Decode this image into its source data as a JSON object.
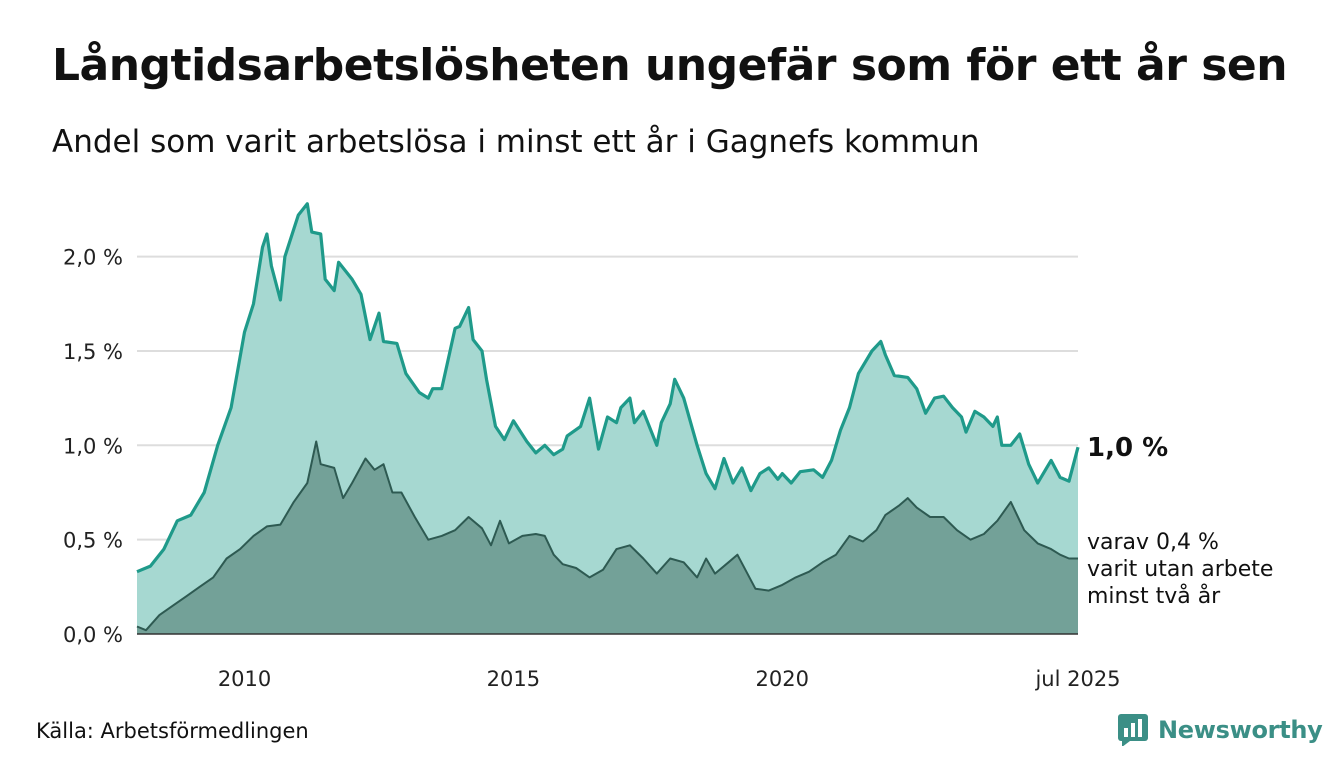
{
  "title": "Långtidsarbetslösheten ungefär som för ett år sen",
  "subtitle": "Andel som varit arbetslösa i minst ett år i Gagnefs kommun",
  "source": "Källa: Arbetsförmedlingen",
  "brand": "Newsworthy",
  "colors": {
    "total_line": "#1f9a8a",
    "total_fill": "#a6d8d1",
    "sub_line": "#2e5a52",
    "sub_fill": "#73a198",
    "grid": "#dddddd",
    "brand": "#3b8f86"
  },
  "chart_data": {
    "type": "area",
    "x_range": [
      "2008-01",
      "2025-07"
    ],
    "ylim": [
      0,
      2.3
    ],
    "y_ticks": [
      0,
      0.5,
      1.0,
      1.5,
      2.0
    ],
    "y_tick_labels": [
      "0,0 %",
      "0,5 %",
      "1,0 %",
      "1,5 %",
      "2,0 %"
    ],
    "x_ticks": [
      "2010-01",
      "2015-01",
      "2020-01",
      "2025-07"
    ],
    "x_tick_labels": [
      "2010",
      "2015",
      "2020",
      "jul 2025"
    ],
    "end_label_total": "1,0 %",
    "end_label_sub": [
      "varav 0,4 %",
      "varit utan arbete",
      "minst två år"
    ],
    "series": [
      {
        "key": "total",
        "points": [
          [
            "2008-01",
            0.33
          ],
          [
            "2008-04",
            0.36
          ],
          [
            "2008-07",
            0.45
          ],
          [
            "2008-10",
            0.6
          ],
          [
            "2009-01",
            0.63
          ],
          [
            "2009-04",
            0.75
          ],
          [
            "2009-07",
            1.0
          ],
          [
            "2009-10",
            1.2
          ],
          [
            "2010-01",
            1.6
          ],
          [
            "2010-03",
            1.75
          ],
          [
            "2010-05",
            2.05
          ],
          [
            "2010-06",
            2.12
          ],
          [
            "2010-07",
            1.95
          ],
          [
            "2010-09",
            1.77
          ],
          [
            "2010-10",
            2.0
          ],
          [
            "2011-01",
            2.22
          ],
          [
            "2011-03",
            2.28
          ],
          [
            "2011-04",
            2.13
          ],
          [
            "2011-06",
            2.12
          ],
          [
            "2011-07",
            1.88
          ],
          [
            "2011-09",
            1.82
          ],
          [
            "2011-10",
            1.97
          ],
          [
            "2012-01",
            1.88
          ],
          [
            "2012-03",
            1.8
          ],
          [
            "2012-05",
            1.56
          ],
          [
            "2012-07",
            1.7
          ],
          [
            "2012-08",
            1.55
          ],
          [
            "2012-11",
            1.54
          ],
          [
            "2013-01",
            1.38
          ],
          [
            "2013-04",
            1.28
          ],
          [
            "2013-06",
            1.25
          ],
          [
            "2013-07",
            1.3
          ],
          [
            "2013-09",
            1.3
          ],
          [
            "2013-12",
            1.62
          ],
          [
            "2014-01",
            1.63
          ],
          [
            "2014-03",
            1.73
          ],
          [
            "2014-04",
            1.56
          ],
          [
            "2014-06",
            1.5
          ],
          [
            "2014-07",
            1.35
          ],
          [
            "2014-09",
            1.1
          ],
          [
            "2014-11",
            1.03
          ],
          [
            "2015-01",
            1.13
          ],
          [
            "2015-04",
            1.02
          ],
          [
            "2015-06",
            0.96
          ],
          [
            "2015-08",
            1.0
          ],
          [
            "2015-10",
            0.95
          ],
          [
            "2015-12",
            0.98
          ],
          [
            "2016-01",
            1.05
          ],
          [
            "2016-04",
            1.1
          ],
          [
            "2016-06",
            1.25
          ],
          [
            "2016-08",
            0.98
          ],
          [
            "2016-10",
            1.15
          ],
          [
            "2016-12",
            1.12
          ],
          [
            "2017-01",
            1.2
          ],
          [
            "2017-03",
            1.25
          ],
          [
            "2017-04",
            1.12
          ],
          [
            "2017-06",
            1.18
          ],
          [
            "2017-09",
            1.0
          ],
          [
            "2017-10",
            1.12
          ],
          [
            "2017-12",
            1.22
          ],
          [
            "2018-01",
            1.35
          ],
          [
            "2018-03",
            1.25
          ],
          [
            "2018-06",
            1.0
          ],
          [
            "2018-08",
            0.85
          ],
          [
            "2018-10",
            0.77
          ],
          [
            "2018-12",
            0.93
          ],
          [
            "2019-02",
            0.8
          ],
          [
            "2019-04",
            0.88
          ],
          [
            "2019-06",
            0.76
          ],
          [
            "2019-08",
            0.85
          ],
          [
            "2019-10",
            0.88
          ],
          [
            "2019-12",
            0.82
          ],
          [
            "2020-01",
            0.85
          ],
          [
            "2020-03",
            0.8
          ],
          [
            "2020-05",
            0.86
          ],
          [
            "2020-08",
            0.87
          ],
          [
            "2020-10",
            0.83
          ],
          [
            "2020-12",
            0.92
          ],
          [
            "2021-02",
            1.08
          ],
          [
            "2021-04",
            1.2
          ],
          [
            "2021-06",
            1.38
          ],
          [
            "2021-09",
            1.5
          ],
          [
            "2021-11",
            1.55
          ],
          [
            "2021-12",
            1.48
          ],
          [
            "2022-02",
            1.37
          ],
          [
            "2022-05",
            1.36
          ],
          [
            "2022-07",
            1.3
          ],
          [
            "2022-09",
            1.17
          ],
          [
            "2022-11",
            1.25
          ],
          [
            "2023-01",
            1.26
          ],
          [
            "2023-03",
            1.2
          ],
          [
            "2023-05",
            1.15
          ],
          [
            "2023-06",
            1.07
          ],
          [
            "2023-08",
            1.18
          ],
          [
            "2023-10",
            1.15
          ],
          [
            "2023-12",
            1.1
          ],
          [
            "2024-01",
            1.15
          ],
          [
            "2024-02",
            1.0
          ],
          [
            "2024-04",
            1.0
          ],
          [
            "2024-06",
            1.06
          ],
          [
            "2024-08",
            0.9
          ],
          [
            "2024-10",
            0.8
          ],
          [
            "2024-12",
            0.88
          ],
          [
            "2025-01",
            0.92
          ],
          [
            "2025-03",
            0.83
          ],
          [
            "2025-05",
            0.81
          ],
          [
            "2025-07",
            0.99
          ]
        ]
      },
      {
        "key": "sub",
        "points": [
          [
            "2008-01",
            0.04
          ],
          [
            "2008-03",
            0.02
          ],
          [
            "2008-06",
            0.1
          ],
          [
            "2008-09",
            0.15
          ],
          [
            "2008-12",
            0.2
          ],
          [
            "2009-03",
            0.25
          ],
          [
            "2009-06",
            0.3
          ],
          [
            "2009-09",
            0.4
          ],
          [
            "2009-12",
            0.45
          ],
          [
            "2010-03",
            0.52
          ],
          [
            "2010-06",
            0.57
          ],
          [
            "2010-09",
            0.58
          ],
          [
            "2010-12",
            0.7
          ],
          [
            "2011-03",
            0.8
          ],
          [
            "2011-05",
            1.02
          ],
          [
            "2011-06",
            0.9
          ],
          [
            "2011-09",
            0.88
          ],
          [
            "2011-11",
            0.72
          ],
          [
            "2012-01",
            0.8
          ],
          [
            "2012-04",
            0.93
          ],
          [
            "2012-06",
            0.87
          ],
          [
            "2012-08",
            0.9
          ],
          [
            "2012-10",
            0.75
          ],
          [
            "2012-12",
            0.75
          ],
          [
            "2013-03",
            0.62
          ],
          [
            "2013-06",
            0.5
          ],
          [
            "2013-09",
            0.52
          ],
          [
            "2013-12",
            0.55
          ],
          [
            "2014-03",
            0.62
          ],
          [
            "2014-06",
            0.56
          ],
          [
            "2014-08",
            0.47
          ],
          [
            "2014-10",
            0.6
          ],
          [
            "2014-12",
            0.48
          ],
          [
            "2015-03",
            0.52
          ],
          [
            "2015-06",
            0.53
          ],
          [
            "2015-08",
            0.52
          ],
          [
            "2015-10",
            0.42
          ],
          [
            "2015-12",
            0.37
          ],
          [
            "2016-03",
            0.35
          ],
          [
            "2016-06",
            0.3
          ],
          [
            "2016-09",
            0.34
          ],
          [
            "2016-12",
            0.45
          ],
          [
            "2017-03",
            0.47
          ],
          [
            "2017-06",
            0.4
          ],
          [
            "2017-09",
            0.32
          ],
          [
            "2017-12",
            0.4
          ],
          [
            "2018-03",
            0.38
          ],
          [
            "2018-06",
            0.3
          ],
          [
            "2018-08",
            0.4
          ],
          [
            "2018-10",
            0.32
          ],
          [
            "2019-01",
            0.38
          ],
          [
            "2019-03",
            0.42
          ],
          [
            "2019-05",
            0.33
          ],
          [
            "2019-07",
            0.24
          ],
          [
            "2019-10",
            0.23
          ],
          [
            "2020-01",
            0.26
          ],
          [
            "2020-04",
            0.3
          ],
          [
            "2020-07",
            0.33
          ],
          [
            "2020-10",
            0.38
          ],
          [
            "2021-01",
            0.42
          ],
          [
            "2021-04",
            0.52
          ],
          [
            "2021-07",
            0.49
          ],
          [
            "2021-10",
            0.55
          ],
          [
            "2021-12",
            0.63
          ],
          [
            "2022-03",
            0.68
          ],
          [
            "2022-05",
            0.72
          ],
          [
            "2022-07",
            0.67
          ],
          [
            "2022-10",
            0.62
          ],
          [
            "2023-01",
            0.62
          ],
          [
            "2023-04",
            0.55
          ],
          [
            "2023-07",
            0.5
          ],
          [
            "2023-10",
            0.53
          ],
          [
            "2024-01",
            0.6
          ],
          [
            "2024-04",
            0.7
          ],
          [
            "2024-07",
            0.55
          ],
          [
            "2024-10",
            0.48
          ],
          [
            "2025-01",
            0.45
          ],
          [
            "2025-03",
            0.42
          ],
          [
            "2025-05",
            0.4
          ],
          [
            "2025-07",
            0.4
          ]
        ]
      }
    ]
  }
}
